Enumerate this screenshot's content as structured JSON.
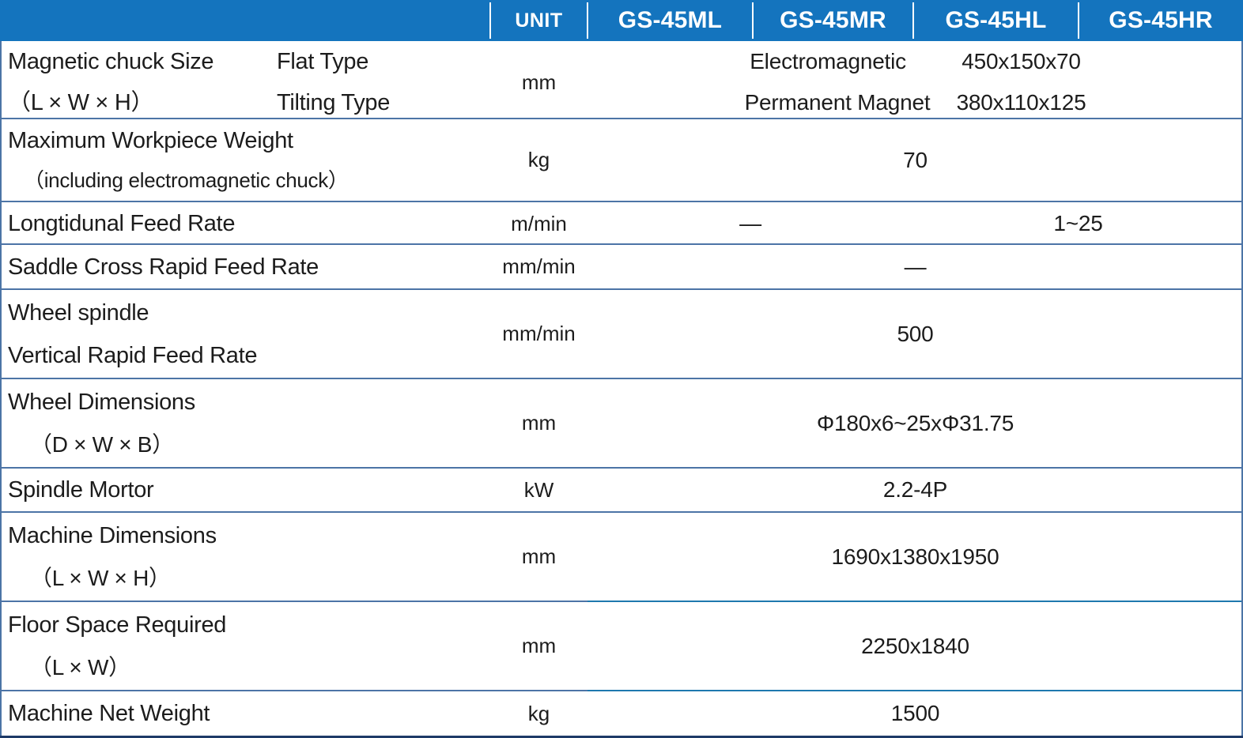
{
  "header": {
    "unit_label": "UNIT",
    "models": {
      "m1": "GS-45ML",
      "m2": "GS-45MR",
      "m3": "GS-45HL",
      "m4": "GS-45HR"
    }
  },
  "rows": {
    "magnetic_chuck": {
      "label": "Magnetic chuck Size",
      "label2": "（L × W × H）",
      "sub1": "Flat Type",
      "sub2": "Tilting Type",
      "unit": "mm",
      "value1_name": "Electromagnetic",
      "value1_dims": "450x150x70",
      "value2_name": "Permanent Magnet",
      "value2_dims": "380x110x125"
    },
    "max_workpiece_weight": {
      "label": "Maximum Workpiece Weight",
      "label2": "（including electromagnetic chuck）",
      "unit": "kg",
      "value": "70"
    },
    "longitudinal_feed": {
      "label": "Longtidunal Feed Rate",
      "unit": "m/min",
      "value_ml_mr": "—",
      "value_hl_hr": "1~25"
    },
    "saddle_cross": {
      "label": "Saddle Cross Rapid Feed Rate",
      "unit": "mm/min",
      "value": "—"
    },
    "wheel_spindle_vertical": {
      "label": "Wheel spindle",
      "label2": "Vertical Rapid Feed Rate",
      "unit": "mm/min",
      "value": "500"
    },
    "wheel_dimensions": {
      "label": "Wheel Dimensions",
      "label2": "（D × W × B）",
      "unit": "mm",
      "value": "Φ180x6~25xΦ31.75"
    },
    "spindle_motor": {
      "label": "Spindle Mortor",
      "unit": "kW",
      "value": "2.2-4P"
    },
    "machine_dimensions": {
      "label": "Machine Dimensions",
      "label2": "（L × W × H）",
      "unit": "mm",
      "value": "1690x1380x1950"
    },
    "floor_space": {
      "label": "Floor Space Required",
      "label2": "（L × W）",
      "unit": "mm",
      "value": "2250x1840"
    },
    "machine_net_weight": {
      "label": "Machine Net Weight",
      "unit": "kg",
      "value": "1500"
    }
  },
  "colors": {
    "header_bg": "#1474BE",
    "header_text": "#FFFFFF",
    "row_border": "#4C74A6",
    "row_border_bright": "#1E78AE",
    "bottom_border": "#1E3A67",
    "text": "#1C1C1C"
  }
}
